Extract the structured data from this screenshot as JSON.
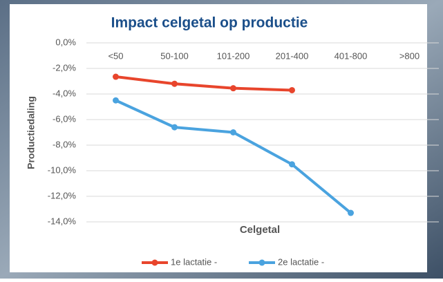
{
  "chart_data": {
    "type": "line",
    "title": "Impact celgetal op productie",
    "x_label": "Celgetal",
    "y_label": "Productiedaling",
    "categories": [
      "<50",
      "50-100",
      "101-200",
      "201-400",
      "401-800",
      ">800"
    ],
    "series": [
      {
        "name": "1e lactatie -",
        "color": "#e8452c",
        "values": [
          -2.65,
          -3.2,
          -3.55,
          -3.7,
          null,
          null
        ]
      },
      {
        "name": "2e lactatie -",
        "color": "#4aa3df",
        "values": [
          -4.5,
          -6.6,
          -7.0,
          -9.5,
          -13.3,
          null
        ]
      }
    ],
    "ylim": [
      0,
      -14
    ],
    "yticks": [
      {
        "value": 0,
        "label": "0,0%"
      },
      {
        "value": -2,
        "label": "-2,0%"
      },
      {
        "value": -4,
        "label": "-4,0%"
      },
      {
        "value": -6,
        "label": "-6,0%"
      },
      {
        "value": -8,
        "label": "-8,0%"
      },
      {
        "value": -10,
        "label": "-10,0%"
      },
      {
        "value": -12,
        "label": "-12,0%"
      },
      {
        "value": -14,
        "label": "-14,0%"
      }
    ],
    "grid": true
  }
}
